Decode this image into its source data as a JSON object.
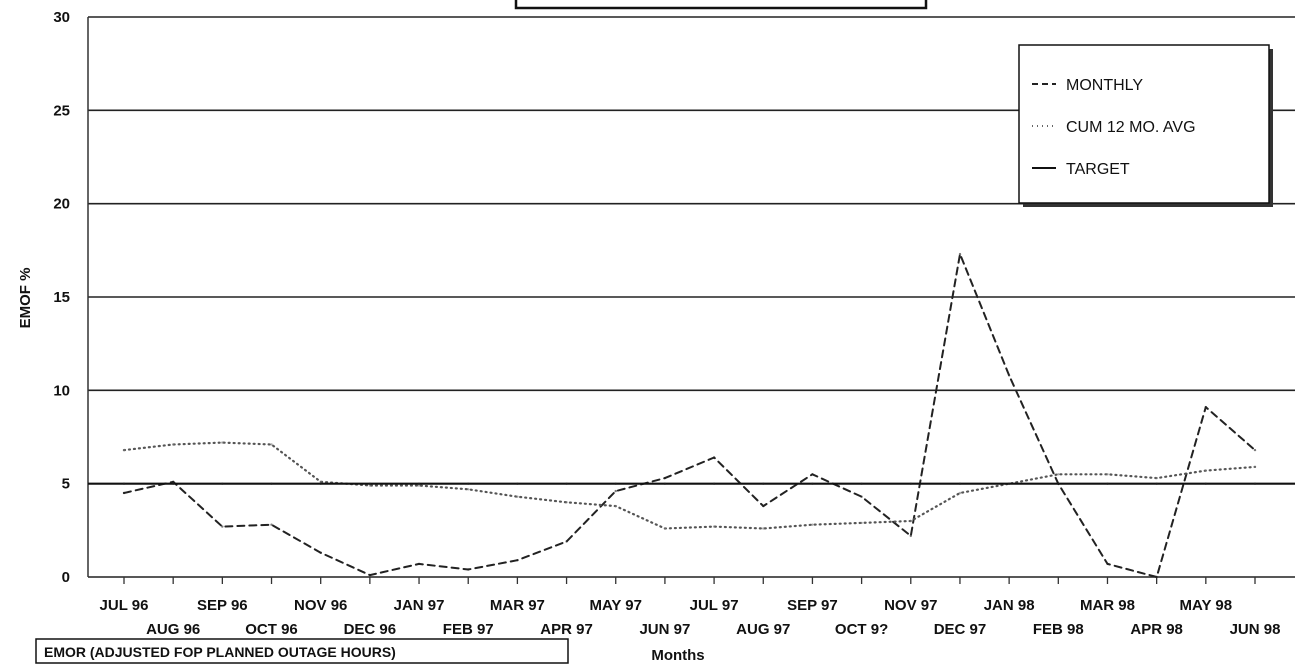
{
  "chart_data": {
    "type": "line",
    "title": "",
    "xlabel": "Months",
    "ylabel": "EMOF %",
    "ylim": [
      0,
      30
    ],
    "yticks": [
      0,
      5,
      10,
      15,
      20,
      25,
      30
    ],
    "grid": true,
    "legend_position": "top-right",
    "categories": [
      "JUL 96",
      "AUG 96",
      "SEP 96",
      "OCT 96",
      "NOV 96",
      "DEC 96",
      "JAN 97",
      "FEB 97",
      "MAR 97",
      "APR 97",
      "MAY 97",
      "JUN 97",
      "JUL 97",
      "AUG 97",
      "SEP 97",
      "OCT 9?",
      "NOV 97",
      "DEC 97",
      "JAN 98",
      "FEB 98",
      "MAR 98",
      "APR 98",
      "MAY 98",
      "JUN 98"
    ],
    "series": [
      {
        "name": "MONTHLY",
        "style": "dashed",
        "values": [
          4.5,
          5.1,
          2.7,
          2.8,
          1.3,
          0.1,
          0.7,
          0.4,
          0.9,
          1.9,
          4.6,
          5.3,
          6.4,
          3.8,
          5.5,
          4.3,
          2.2,
          17.3,
          10.8,
          5.0,
          0.7,
          0.0,
          9.1,
          6.8
        ]
      },
      {
        "name": "CUM 12 MO. AVG",
        "style": "dotted",
        "values": [
          6.8,
          7.1,
          7.2,
          7.1,
          5.1,
          4.9,
          4.9,
          4.7,
          4.3,
          4.0,
          3.8,
          2.6,
          2.7,
          2.6,
          2.8,
          2.9,
          3.0,
          4.5,
          5.0,
          5.5,
          5.5,
          5.3,
          5.7,
          5.9
        ]
      },
      {
        "name": "TARGET",
        "style": "solid",
        "values": [
          5,
          5,
          5,
          5,
          5,
          5,
          5,
          5,
          5,
          5,
          5,
          5,
          5,
          5,
          5,
          5,
          5,
          5,
          5,
          5,
          5,
          5,
          5,
          5
        ]
      }
    ],
    "caption": "EMOR (ADJUSTED FOP PLANNED OUTAGE HOURS)"
  },
  "colors": {
    "line": "#222222",
    "grid": "#222222",
    "axis": "#333333"
  }
}
